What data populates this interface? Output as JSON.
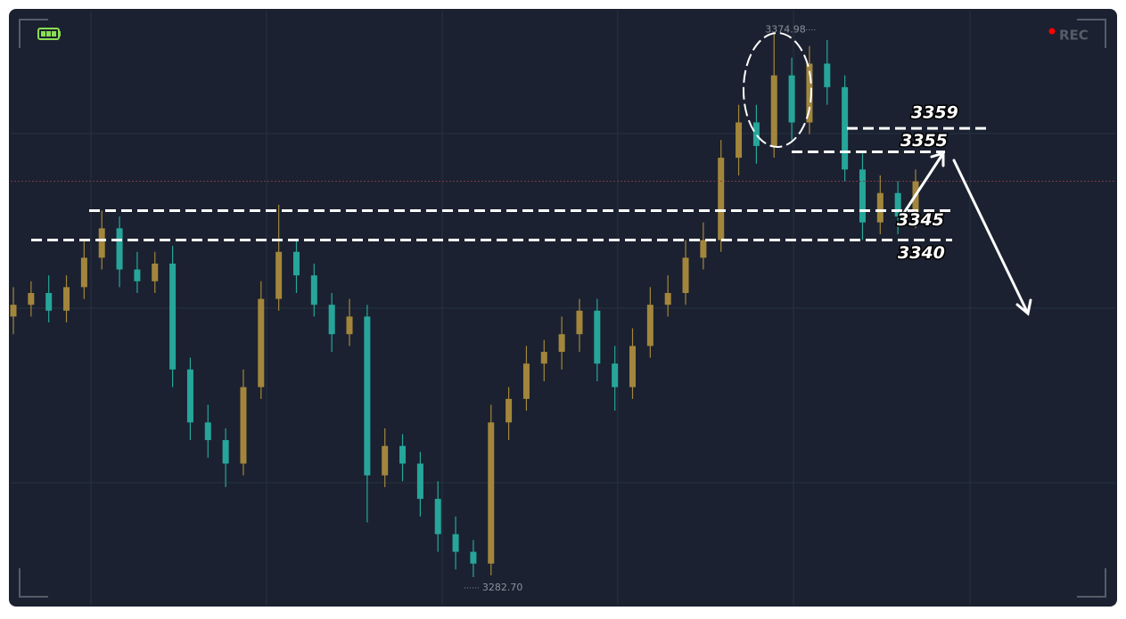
{
  "chart_data": {
    "type": "candlestick",
    "ylim": [
      3278,
      3379
    ],
    "open": [
      3327,
      3329,
      3331,
      3328,
      3332,
      3337,
      3342,
      3335,
      3333,
      3336,
      3318,
      3309,
      3306,
      3302,
      3315,
      3330,
      3338,
      3334,
      3329,
      3324,
      3327,
      3300,
      3305,
      3302,
      3296,
      3290,
      3287,
      3285,
      3309,
      3313,
      3319,
      3321,
      3324,
      3328,
      3319,
      3315,
      3322,
      3329,
      3331,
      3337,
      3340,
      3354,
      3360,
      3356,
      3368,
      3360,
      3370,
      3366,
      3352,
      3343,
      3348,
      3344
    ],
    "high": [
      3332,
      3333,
      3334,
      3334,
      3340,
      3345,
      3344,
      3338,
      3338,
      3339,
      3320,
      3312,
      3308,
      3318,
      3333,
      3346,
      3340,
      3336,
      3331,
      3330,
      3329,
      3308,
      3307,
      3304,
      3299,
      3293,
      3289,
      3312,
      3315,
      3322,
      3323,
      3327,
      3330,
      3330,
      3322,
      3325,
      3332,
      3334,
      3340,
      3343,
      3357,
      3363,
      3363,
      3374.98,
      3371,
      3373,
      3374,
      3368,
      3355,
      3351,
      3350,
      3352
    ],
    "low": [
      3324,
      3327,
      3326,
      3326,
      3330,
      3335,
      3332,
      3331,
      3331,
      3315,
      3306,
      3303,
      3298,
      3300,
      3313,
      3328,
      3331,
      3327,
      3321,
      3322,
      3292,
      3298,
      3299,
      3293,
      3287,
      3284,
      3282.7,
      3283,
      3306,
      3311,
      3316,
      3318,
      3321,
      3316,
      3311,
      3313,
      3320,
      3327,
      3329,
      3335,
      3338,
      3351,
      3353,
      3354,
      3357,
      3358,
      3363,
      3350,
      3340,
      3341,
      3341,
      3342
    ],
    "close": [
      3329,
      3331,
      3328,
      3332,
      3337,
      3342,
      3335,
      3333,
      3336,
      3318,
      3309,
      3306,
      3302,
      3315,
      3330,
      3338,
      3334,
      3329,
      3324,
      3327,
      3300,
      3305,
      3302,
      3296,
      3290,
      3287,
      3285,
      3309,
      3313,
      3319,
      3321,
      3324,
      3328,
      3319,
      3315,
      3322,
      3329,
      3331,
      3337,
      3340,
      3354,
      3360,
      3356,
      3368,
      3360,
      3370,
      3366,
      3352,
      3343,
      3348,
      3344,
      3350
    ],
    "up_color": "#a3863c",
    "down_color": "#26a69a",
    "high_label": 3374.98,
    "low_label": {
      "value": 3282.7,
      "label": "3282.70"
    },
    "levels": [
      {
        "value": 3359
      },
      {
        "value": 3355
      },
      {
        "value": 3345
      },
      {
        "value": 3340
      }
    ],
    "level_color": "#ffffff",
    "rec": "REC"
  }
}
